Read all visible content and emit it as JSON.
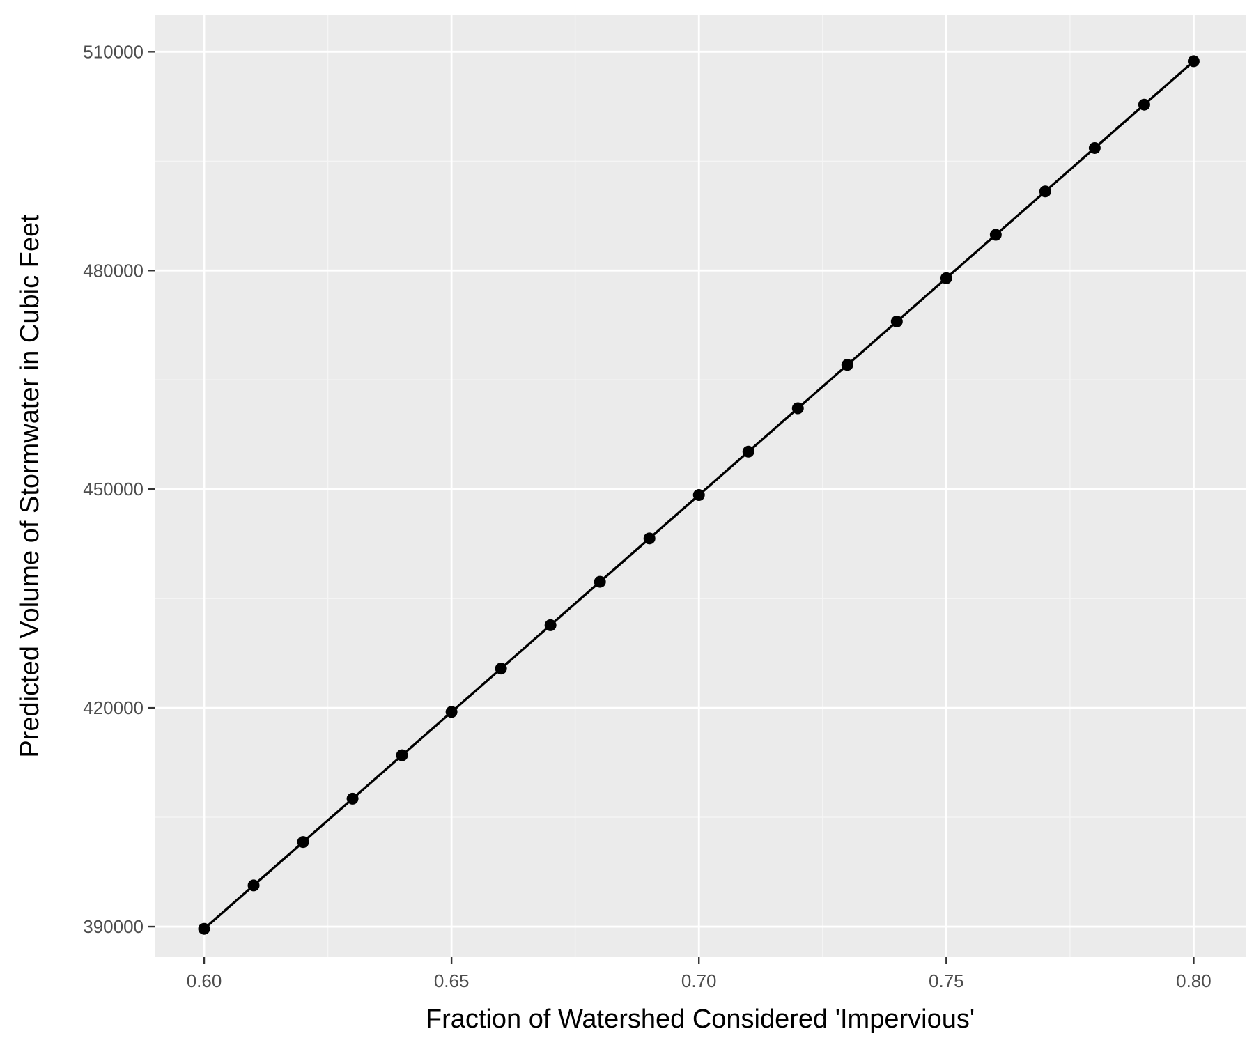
{
  "chart_data": {
    "type": "line",
    "title": "",
    "xlabel": "Fraction of Watershed Considered 'Impervious'",
    "ylabel": "Predicted Volume of Stormwater in Cubic Feet",
    "xlim": [
      0.59,
      0.8105
    ],
    "ylim": [
      385800,
      515000
    ],
    "x_ticks": [
      {
        "value": 0.6,
        "label": "0.60"
      },
      {
        "value": 0.65,
        "label": "0.65"
      },
      {
        "value": 0.7,
        "label": "0.70"
      },
      {
        "value": 0.75,
        "label": "0.75"
      },
      {
        "value": 0.8,
        "label": "0.80"
      }
    ],
    "y_ticks": [
      {
        "value": 390000,
        "label": "390000"
      },
      {
        "value": 420000,
        "label": "420000"
      },
      {
        "value": 450000,
        "label": "450000"
      },
      {
        "value": 480000,
        "label": "480000"
      },
      {
        "value": 510000,
        "label": "510000"
      }
    ],
    "grid": true,
    "legend": "none",
    "series": [
      {
        "x": [
          0.6,
          0.61,
          0.62,
          0.63,
          0.64,
          0.65,
          0.66,
          0.67,
          0.68,
          0.69,
          0.7,
          0.71,
          0.72,
          0.73,
          0.74,
          0.75,
          0.76,
          0.77,
          0.78,
          0.79,
          0.8
        ],
        "values": [
          389700,
          395650,
          401600,
          407550,
          413500,
          419450,
          425400,
          431350,
          437300,
          443250,
          449200,
          455150,
          461100,
          467050,
          473000,
          478950,
          484900,
          490850,
          496800,
          502750,
          508700
        ],
        "color": "#000000"
      }
    ],
    "colors": {
      "panel_background": "#ebebeb",
      "grid_major": "#ffffff",
      "grid_minor": "#f5f5f5",
      "line": "#000000",
      "tick_label": "#4d4d4d"
    }
  }
}
